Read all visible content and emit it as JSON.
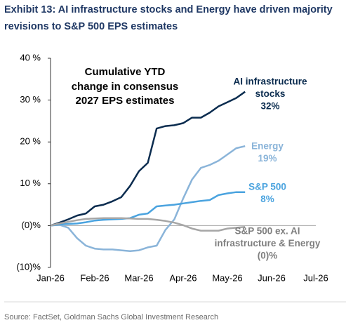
{
  "chart_data": {
    "type": "line",
    "title": [
      "Exhibit 13: AI infrastructure stocks and Energy have driven majority",
      "revisions to S&P 500 EPS estimates"
    ],
    "annotation": [
      "Cumulative YTD",
      "change in consensus",
      "2027 EPS estimates"
    ],
    "source": "Source: FactSet, Goldman Sachs Global Investment Research",
    "x": [
      0,
      0.2,
      0.4,
      0.6,
      0.8,
      1.0,
      1.2,
      1.4,
      1.6,
      1.8,
      2.0,
      2.2,
      2.4,
      2.6,
      2.8,
      3.0,
      3.2,
      3.4,
      3.6,
      3.8,
      4.0,
      4.2,
      4.4
    ],
    "xlim": [
      0,
      6
    ],
    "xticks": [
      {
        "value": 0,
        "label": "Jan-26"
      },
      {
        "value": 1,
        "label": "Feb-26"
      },
      {
        "value": 2,
        "label": "Mar-26"
      },
      {
        "value": 3,
        "label": "Apr-26"
      },
      {
        "value": 4,
        "label": "May-26"
      },
      {
        "value": 5,
        "label": "Jun-26"
      },
      {
        "value": 6,
        "label": "Jul-26"
      }
    ],
    "ylim": [
      -10,
      40
    ],
    "yticks": [
      {
        "value": -10,
        "label": "(10)%"
      },
      {
        "value": 0,
        "label": "(0)%"
      },
      {
        "value": 10,
        "label": "10 %"
      },
      {
        "value": 20,
        "label": "20 %"
      },
      {
        "value": 30,
        "label": "30 %"
      },
      {
        "value": 40,
        "label": "40 %"
      }
    ],
    "series": [
      {
        "label": [
          "AI infrastructure",
          "stocks",
          "32%"
        ],
        "color": "#0b2c4f",
        "values": [
          0,
          0.7,
          1.5,
          2.4,
          2.9,
          4.6,
          5.0,
          5.8,
          6.8,
          9.5,
          13.0,
          15.0,
          23.2,
          23.8,
          24.0,
          24.5,
          25.8,
          25.8,
          27.0,
          28.5,
          29.5,
          30.5,
          32.0
        ]
      },
      {
        "label": [
          "Energy",
          "19%"
        ],
        "color": "#8ab4d9",
        "values": [
          0,
          0.2,
          -0.5,
          -3.0,
          -4.8,
          -5.5,
          -5.7,
          -5.7,
          -5.9,
          -6.1,
          -5.9,
          -5.2,
          -4.8,
          -1.0,
          1.5,
          6.5,
          11.0,
          13.8,
          14.5,
          15.5,
          17.0,
          18.5,
          19.0
        ]
      },
      {
        "label": [
          "S&P 500",
          "8%"
        ],
        "color": "#4aa3df",
        "values": [
          0,
          0.3,
          0.4,
          0.5,
          0.8,
          1.2,
          1.4,
          1.5,
          1.6,
          1.8,
          2.6,
          2.9,
          4.6,
          4.8,
          5.0,
          5.3,
          5.6,
          5.9,
          6.1,
          7.3,
          7.7,
          8.0,
          8.0
        ]
      },
      {
        "label": [
          "S&P 500 ex. AI",
          "infrastructure & Energy",
          "(0)%"
        ],
        "color": "#a6a6a6",
        "values": [
          0,
          0.5,
          0.9,
          1.3,
          1.6,
          1.7,
          1.8,
          1.8,
          1.8,
          1.7,
          1.6,
          1.6,
          1.4,
          1.1,
          0.7,
          0.1,
          -0.7,
          -1.2,
          -1.2,
          -1.2,
          -0.7,
          -0.5,
          -0.3
        ]
      }
    ]
  }
}
